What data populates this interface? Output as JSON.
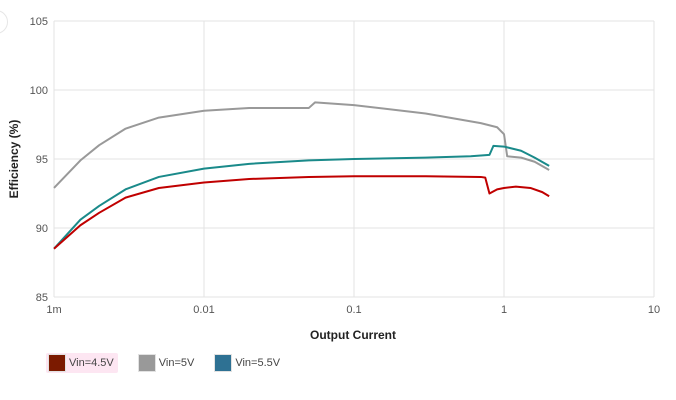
{
  "chart_data": {
    "type": "line",
    "xlabel": "Output Current",
    "ylabel": "Efficiency (%)",
    "xscale": "log",
    "xlim": [
      0.001,
      10
    ],
    "ylim": [
      85,
      105
    ],
    "x_ticks": [
      0.001,
      0.01,
      0.1,
      1,
      10
    ],
    "x_tick_labels": [
      "1m",
      "0.01",
      "0.1",
      "1",
      "10"
    ],
    "y_ticks": [
      85,
      90,
      95,
      100,
      105
    ],
    "y_tick_labels": [
      "85",
      "90",
      "95",
      "100",
      "105"
    ],
    "grid": true,
    "legend_position": "bottom-left",
    "series": [
      {
        "name": "Vin=4.5V",
        "color": "#c00000",
        "swatch_color": "#7b1a00",
        "points": [
          [
            0.001,
            88.5
          ],
          [
            0.0015,
            90.2
          ],
          [
            0.002,
            91.1
          ],
          [
            0.003,
            92.2
          ],
          [
            0.005,
            92.9
          ],
          [
            0.01,
            93.3
          ],
          [
            0.02,
            93.55
          ],
          [
            0.05,
            93.7
          ],
          [
            0.1,
            93.75
          ],
          [
            0.3,
            93.75
          ],
          [
            0.7,
            93.7
          ],
          [
            0.75,
            93.65
          ],
          [
            0.8,
            92.5
          ],
          [
            0.9,
            92.8
          ],
          [
            1.0,
            92.9
          ],
          [
            1.2,
            93.0
          ],
          [
            1.5,
            92.9
          ],
          [
            1.8,
            92.6
          ],
          [
            2.0,
            92.3
          ]
        ]
      },
      {
        "name": "Vin=5V",
        "color": "#999999",
        "swatch_color": "#999999",
        "points": [
          [
            0.001,
            92.9
          ],
          [
            0.0015,
            94.9
          ],
          [
            0.002,
            96.0
          ],
          [
            0.003,
            97.2
          ],
          [
            0.005,
            98.0
          ],
          [
            0.01,
            98.5
          ],
          [
            0.02,
            98.7
          ],
          [
            0.05,
            98.7
          ],
          [
            0.055,
            99.1
          ],
          [
            0.1,
            98.9
          ],
          [
            0.3,
            98.3
          ],
          [
            0.7,
            97.6
          ],
          [
            0.9,
            97.3
          ],
          [
            1.0,
            96.8
          ],
          [
            1.05,
            95.2
          ],
          [
            1.3,
            95.1
          ],
          [
            1.6,
            94.8
          ],
          [
            2.0,
            94.2
          ]
        ]
      },
      {
        "name": "Vin=5.5V",
        "color": "#1a8a8a",
        "swatch_color": "#2e7193",
        "points": [
          [
            0.001,
            88.5
          ],
          [
            0.0015,
            90.6
          ],
          [
            0.002,
            91.6
          ],
          [
            0.003,
            92.8
          ],
          [
            0.005,
            93.7
          ],
          [
            0.01,
            94.3
          ],
          [
            0.02,
            94.65
          ],
          [
            0.05,
            94.9
          ],
          [
            0.1,
            95.0
          ],
          [
            0.3,
            95.1
          ],
          [
            0.6,
            95.2
          ],
          [
            0.8,
            95.3
          ],
          [
            0.85,
            95.95
          ],
          [
            1.0,
            95.9
          ],
          [
            1.3,
            95.6
          ],
          [
            1.6,
            95.1
          ],
          [
            2.0,
            94.5
          ]
        ]
      }
    ]
  }
}
